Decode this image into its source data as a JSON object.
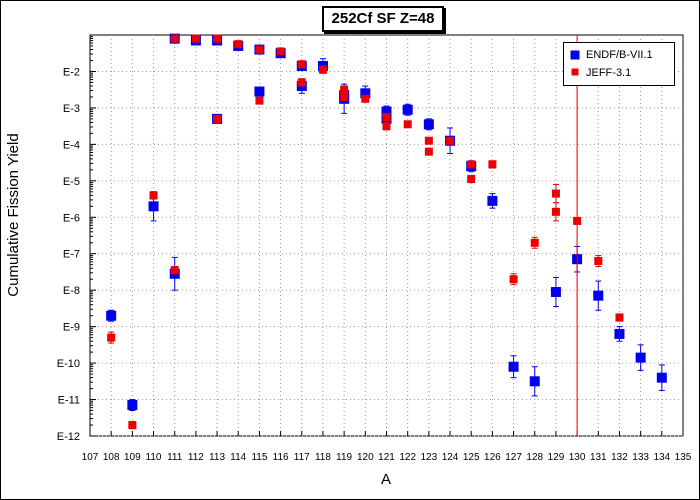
{
  "chart_data": {
    "type": "scatter",
    "title": "252Cf SF Z=48",
    "xlabel": "A",
    "ylabel": "Cumulative Fission Yield",
    "x_range": [
      107,
      135
    ],
    "y_range_log10": [
      -12,
      -1
    ],
    "y_scale": "log",
    "grid": true,
    "legend_position": "top-right",
    "x_ticks": [
      107,
      108,
      109,
      110,
      111,
      112,
      113,
      114,
      115,
      116,
      117,
      118,
      119,
      120,
      121,
      122,
      123,
      124,
      125,
      126,
      127,
      128,
      129,
      130,
      131,
      132,
      133,
      134,
      135
    ],
    "y_tick_labels": [
      "E-12",
      "E-11",
      "E-10",
      "E-9",
      "E-8",
      "E-7",
      "E-6",
      "E-5",
      "E-4",
      "E-3",
      "E-2"
    ],
    "y_tick_exponents": [
      -12,
      -11,
      -10,
      -9,
      -8,
      -7,
      -6,
      -5,
      -4,
      -3,
      -2
    ],
    "series": [
      {
        "name": "ENDF/B-VII.1",
        "color": "#0000ee",
        "marker": "square",
        "points": [
          {
            "x": 108,
            "log10_y": -8.7,
            "err": 0.15
          },
          {
            "x": 109,
            "log10_y": -11.15,
            "err": 0.15
          },
          {
            "x": 110,
            "log10_y": -5.7,
            "err": 0.4
          },
          {
            "x": 111,
            "log10_y": -1.1
          },
          {
            "x": 111,
            "log10_y": -7.55,
            "err": 0.45
          },
          {
            "x": 112,
            "log10_y": -1.15
          },
          {
            "x": 113,
            "log10_y": -1.15
          },
          {
            "x": 113,
            "log10_y": -3.3
          },
          {
            "x": 114,
            "log10_y": -1.3
          },
          {
            "x": 115,
            "log10_y": -1.4
          },
          {
            "x": 115,
            "log10_y": -2.55
          },
          {
            "x": 116,
            "log10_y": -1.5
          },
          {
            "x": 117,
            "log10_y": -1.85
          },
          {
            "x": 117,
            "log10_y": -2.4,
            "err": 0.2
          },
          {
            "x": 118,
            "log10_y": -1.85,
            "err": 0.2
          },
          {
            "x": 119,
            "log10_y": -2.75,
            "err": 0.4
          },
          {
            "x": 119,
            "log10_y": -2.65
          },
          {
            "x": 120,
            "log10_y": -2.6,
            "err": 0.2
          },
          {
            "x": 121,
            "log10_y": -3.1,
            "err": 0.15
          },
          {
            "x": 121,
            "log10_y": -3.3,
            "err": 0.3
          },
          {
            "x": 122,
            "log10_y": -3.05,
            "err": 0.15
          },
          {
            "x": 123,
            "log10_y": -3.45,
            "err": 0.15
          },
          {
            "x": 124,
            "log10_y": -3.9,
            "err": 0.35
          },
          {
            "x": 125,
            "log10_y": -4.6,
            "err": 0.15
          },
          {
            "x": 126,
            "log10_y": -5.55,
            "err": 0.2
          },
          {
            "x": 127,
            "log10_y": -10.1,
            "err": 0.3
          },
          {
            "x": 128,
            "log10_y": -10.5,
            "err": 0.4
          },
          {
            "x": 129,
            "log10_y": -8.05,
            "err": 0.4
          },
          {
            "x": 130,
            "log10_y": -7.15,
            "err": 0.35
          },
          {
            "x": 131,
            "log10_y": -8.15,
            "err": 0.4
          },
          {
            "x": 132,
            "log10_y": -9.2,
            "err": 0.2
          },
          {
            "x": 133,
            "log10_y": -9.85,
            "err": 0.35
          },
          {
            "x": 134,
            "log10_y": -10.4,
            "err": 0.35
          }
        ]
      },
      {
        "name": "JEFF-3.1",
        "color": "#ee0000",
        "marker": "square",
        "points": [
          {
            "x": 108,
            "log10_y": -9.3,
            "err": 0.15
          },
          {
            "x": 109,
            "log10_y": -11.7,
            "err": 0.1
          },
          {
            "x": 110,
            "log10_y": -5.4,
            "err": 0.1
          },
          {
            "x": 111,
            "log10_y": -1.1
          },
          {
            "x": 111,
            "log10_y": -7.45,
            "err": 0.1
          },
          {
            "x": 112,
            "log10_y": -1.1
          },
          {
            "x": 113,
            "log10_y": -1.1
          },
          {
            "x": 113,
            "log10_y": -3.3
          },
          {
            "x": 114,
            "log10_y": -1.25
          },
          {
            "x": 115,
            "log10_y": -1.4
          },
          {
            "x": 115,
            "log10_y": -2.8
          },
          {
            "x": 116,
            "log10_y": -1.45
          },
          {
            "x": 117,
            "log10_y": -1.8
          },
          {
            "x": 117,
            "log10_y": -2.3
          },
          {
            "x": 118,
            "log10_y": -1.95
          },
          {
            "x": 119,
            "log10_y": -2.5,
            "err": 0.1
          },
          {
            "x": 119,
            "log10_y": -2.7
          },
          {
            "x": 120,
            "log10_y": -2.75
          },
          {
            "x": 121,
            "log10_y": -3.5
          },
          {
            "x": 121,
            "log10_y": -3.25
          },
          {
            "x": 122,
            "log10_y": -3.45
          },
          {
            "x": 123,
            "log10_y": -4.2
          },
          {
            "x": 123,
            "log10_y": -3.9
          },
          {
            "x": 124,
            "log10_y": -3.9
          },
          {
            "x": 125,
            "log10_y": -4.95,
            "err": 0.1
          },
          {
            "x": 125,
            "log10_y": -4.55
          },
          {
            "x": 126,
            "log10_y": -4.55,
            "err": 0.1
          },
          {
            "x": 127,
            "log10_y": -7.7,
            "err": 0.15
          },
          {
            "x": 128,
            "log10_y": -6.7,
            "err": 0.15
          },
          {
            "x": 129,
            "log10_y": -5.85,
            "err": 0.25
          },
          {
            "x": 129,
            "log10_y": -5.35,
            "err": 0.25
          },
          {
            "x": 130,
            "log10_y": -6.1,
            "err": 6.9
          },
          {
            "x": 131,
            "log10_y": -7.2,
            "err": 0.15
          },
          {
            "x": 132,
            "log10_y": -8.75,
            "err": 0.1
          }
        ]
      }
    ]
  }
}
